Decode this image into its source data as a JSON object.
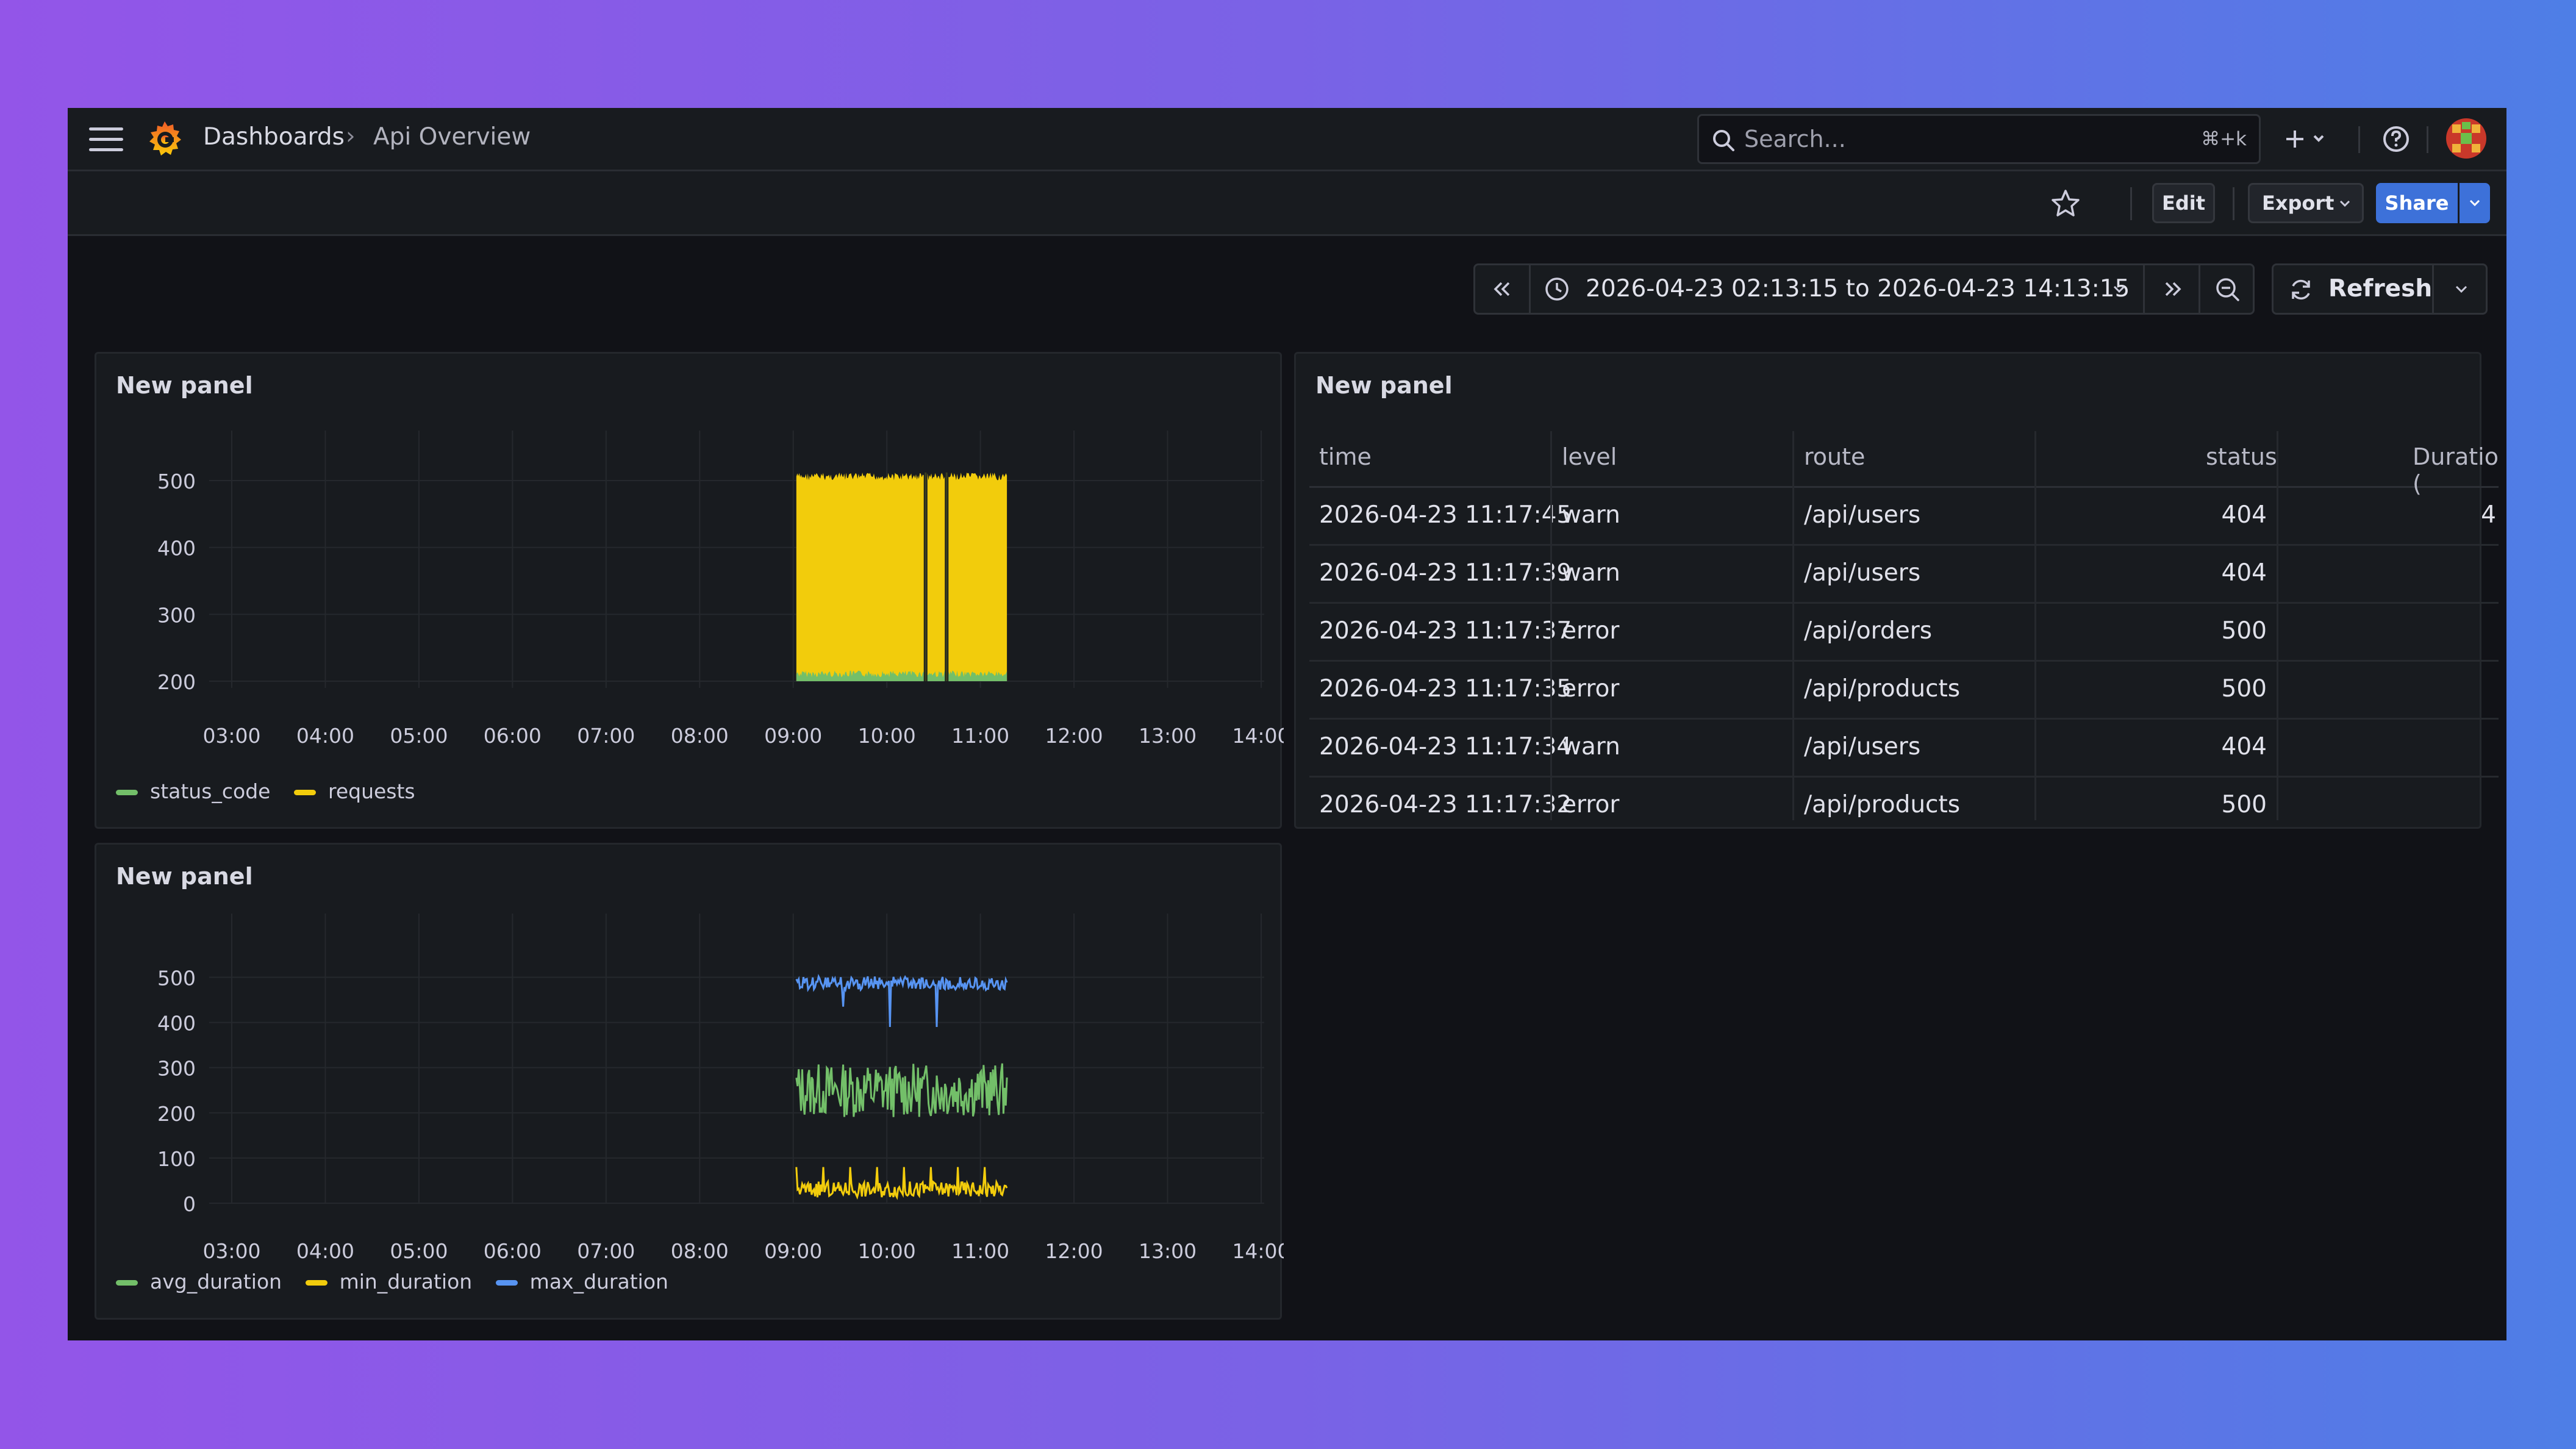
{
  "header": {
    "breadcrumb_root": "Dashboards",
    "breadcrumb_sep": "›",
    "breadcrumb_current": "Api Overview",
    "search_placeholder": "Search...",
    "search_shortcut": "⌘+k"
  },
  "toolbar": {
    "edit_label": "Edit",
    "export_label": "Export",
    "share_label": "Share"
  },
  "time_controls": {
    "range_label": "2026-04-23 02:13:15 to 2026-04-23 14:13:15",
    "refresh_label": "Refresh"
  },
  "panels": [
    {
      "title": "New panel",
      "chart_data": {
        "type": "area",
        "x_ticks": [
          "03:00",
          "04:00",
          "05:00",
          "06:00",
          "07:00",
          "08:00",
          "09:00",
          "10:00",
          "11:00",
          "12:00",
          "13:00",
          "14:00"
        ],
        "y_ticks": [
          200,
          300,
          400,
          500
        ],
        "ylim": [
          190,
          520
        ],
        "grid": true,
        "legend_placement": "bottom-left",
        "series": [
          {
            "name": "status_code",
            "color": "#73bf69",
            "x_range": [
              "09:02",
              "11:17"
            ],
            "values_approx": [
              200,
              216
            ]
          },
          {
            "name": "requests",
            "color": "#f2cc0c",
            "x_range": [
              "09:02",
              "11:17"
            ],
            "values_approx": [
              200,
              512
            ]
          }
        ]
      }
    },
    {
      "title": "New panel",
      "table": {
        "columns": [
          "time",
          "level",
          "route",
          "status",
          "Duration ("
        ],
        "rows": [
          [
            "2026-04-23 11:17:45",
            "warn",
            "/api/users",
            "404",
            "4"
          ],
          [
            "2026-04-23 11:17:39",
            "warn",
            "/api/users",
            "404",
            ""
          ],
          [
            "2026-04-23 11:17:37",
            "error",
            "/api/orders",
            "500",
            ""
          ],
          [
            "2026-04-23 11:17:35",
            "error",
            "/api/products",
            "500",
            ""
          ],
          [
            "2026-04-23 11:17:34",
            "warn",
            "/api/users",
            "404",
            ""
          ],
          [
            "2026-04-23 11:17:32",
            "error",
            "/api/products",
            "500",
            ""
          ]
        ]
      }
    },
    {
      "title": "New panel",
      "chart_data": {
        "type": "line",
        "x_ticks": [
          "03:00",
          "04:00",
          "05:00",
          "06:00",
          "07:00",
          "08:00",
          "09:00",
          "10:00",
          "11:00",
          "12:00",
          "13:00",
          "14:00"
        ],
        "y_ticks": [
          0,
          100,
          200,
          300,
          400,
          500
        ],
        "ylim": [
          0,
          560
        ],
        "grid": true,
        "legend_placement": "bottom-left",
        "series": [
          {
            "name": "avg_duration",
            "color": "#73bf69",
            "x_range": [
              "09:02",
              "11:17"
            ],
            "range_approx": [
              190,
              310
            ]
          },
          {
            "name": "min_duration",
            "color": "#f2cc0c",
            "x_range": [
              "09:02",
              "11:17"
            ],
            "range_approx": [
              5,
              80
            ]
          },
          {
            "name": "max_duration",
            "color": "#5794f2",
            "x_range": [
              "09:02",
              "11:17"
            ],
            "range_approx": [
              380,
              510
            ]
          }
        ]
      }
    }
  ],
  "colors": {
    "accent": "#3d71d9",
    "panel_bg": "#181b1f",
    "page_bg": "#111217"
  }
}
